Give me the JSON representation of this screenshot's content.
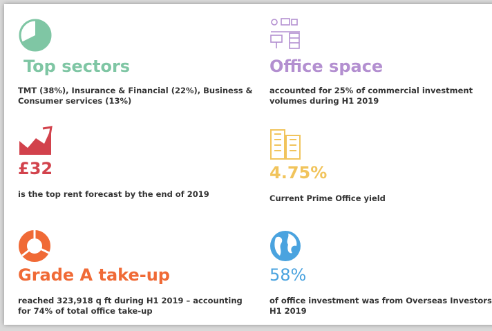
{
  "items": [
    {
      "title": "Top sectors",
      "text": "TMT (38%), Insurance & Financial (22%), Business & Consumer services (13%)"
    },
    {
      "title": "Office space",
      "text": "accounted for 25% of commercial investment volumes during H1 2019"
    },
    {
      "title": "£32",
      "text": "is the top rent forecast by the end of 2019"
    },
    {
      "title": "4.75%",
      "text": "Current Prime Office yield"
    },
    {
      "title": "Grade A take-up",
      "text": "reached 323,918 q ft during H1 2019 – accounting for 74% of total office take-up"
    },
    {
      "title": "58%",
      "text": "of office investment was from Overseas Investors in H1 2019"
    }
  ]
}
